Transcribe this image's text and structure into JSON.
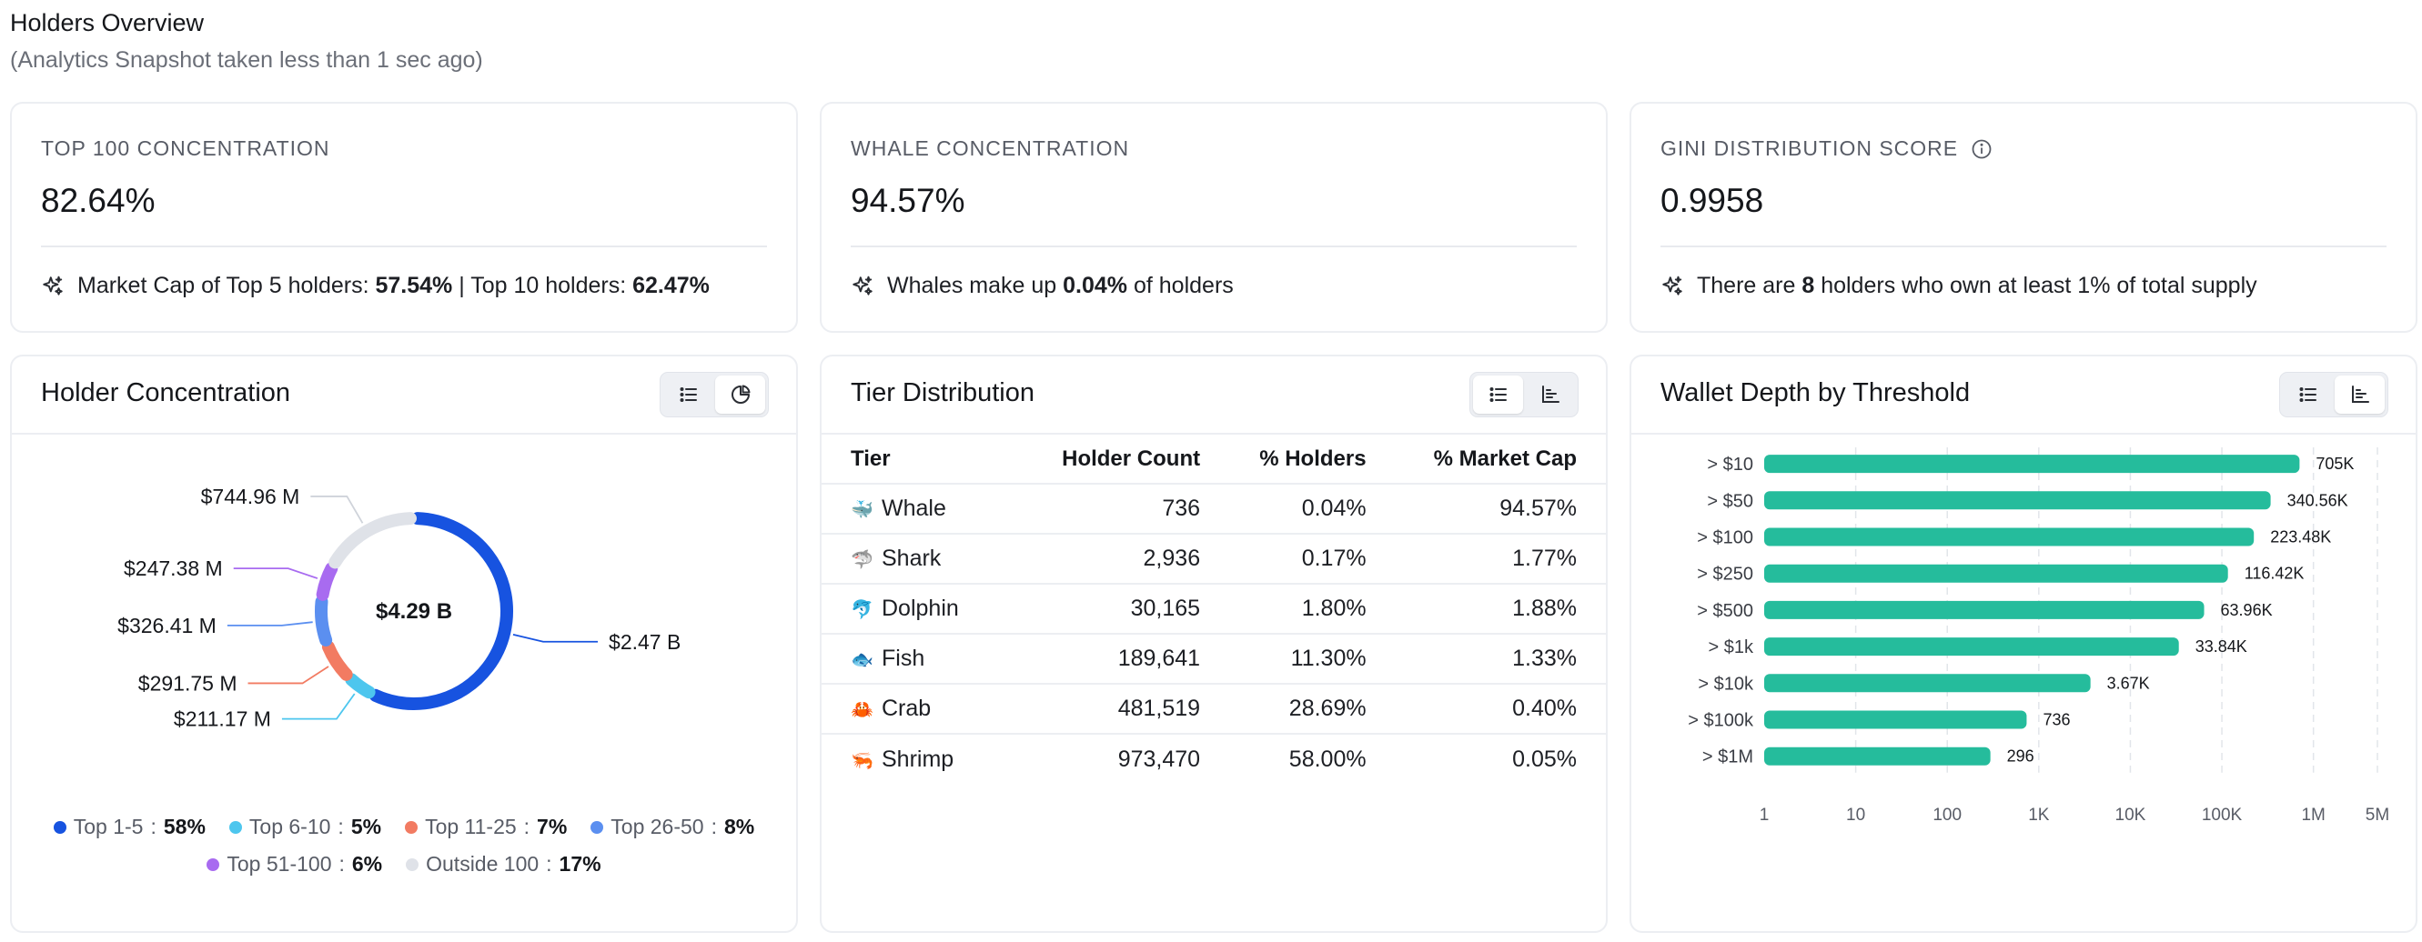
{
  "header": {
    "title": "Holders Overview",
    "subtitle": "(Analytics Snapshot taken less than 1 sec ago)"
  },
  "stats": [
    {
      "label": "TOP 100 CONCENTRATION",
      "value": "82.64%",
      "note": {
        "t1": "Market Cap of Top 5 holders: ",
        "b1": "57.54%",
        "t2": " | Top 10 holders: ",
        "b2": "62.47%",
        "t3": ""
      }
    },
    {
      "label": "WHALE CONCENTRATION",
      "value": "94.57%",
      "note": {
        "t1": "Whales make up ",
        "b1": "0.04%",
        "t2": " of holders",
        "b2": "",
        "t3": ""
      }
    },
    {
      "label": "GINI DISTRIBUTION SCORE",
      "value": "0.9958",
      "note": {
        "t1": "There are ",
        "b1": "8",
        "t2": " holders who own at least 1% of total supply",
        "b2": "",
        "t3": ""
      }
    }
  ],
  "holder_concentration": {
    "title": "Holder Concentration",
    "center_label": "$4.29 B",
    "segments": [
      {
        "key": "Top 1-5",
        "pct": 58,
        "pct_label": "58%",
        "amount": "$2.47 B",
        "color": "#1753e0"
      },
      {
        "key": "Top 6-10",
        "pct": 5,
        "pct_label": "5%",
        "amount": "$211.17 M",
        "color": "#4dc6ee"
      },
      {
        "key": "Top 11-25",
        "pct": 7,
        "pct_label": "7%",
        "amount": "$291.75 M",
        "color": "#f27b62"
      },
      {
        "key": "Top 26-50",
        "pct": 8,
        "pct_label": "8%",
        "amount": "$326.41 M",
        "color": "#5b8ff0"
      },
      {
        "key": "Top 51-100",
        "pct": 6,
        "pct_label": "6%",
        "amount": "$247.38 M",
        "color": "#a86bf0"
      },
      {
        "key": "Outside 100",
        "pct": 17,
        "pct_label": "17%",
        "amount": "$744.96 M",
        "color": "#dfe2e8"
      }
    ]
  },
  "tier_distribution": {
    "title": "Tier Distribution",
    "columns": [
      "Tier",
      "Holder Count",
      "% Holders",
      "% Market Cap"
    ],
    "rows": [
      {
        "icon": "whale-icon",
        "emoji": "🐳",
        "tier": "Whale",
        "count": "736",
        "holders": "0.04%",
        "mcap": "94.57%"
      },
      {
        "icon": "shark-icon",
        "emoji": "🦈",
        "tier": "Shark",
        "count": "2,936",
        "holders": "0.17%",
        "mcap": "1.77%"
      },
      {
        "icon": "dolphin-icon",
        "emoji": "🐬",
        "tier": "Dolphin",
        "count": "30,165",
        "holders": "1.80%",
        "mcap": "1.88%"
      },
      {
        "icon": "fish-icon",
        "emoji": "🐟",
        "tier": "Fish",
        "count": "189,641",
        "holders": "11.30%",
        "mcap": "1.33%"
      },
      {
        "icon": "crab-icon",
        "emoji": "🦀",
        "tier": "Crab",
        "count": "481,519",
        "holders": "28.69%",
        "mcap": "0.40%"
      },
      {
        "icon": "shrimp-icon",
        "emoji": "🦐",
        "tier": "Shrimp",
        "count": "973,470",
        "holders": "58.00%",
        "mcap": "0.05%"
      }
    ]
  },
  "wallet_depth": {
    "title": "Wallet Depth by Threshold"
  },
  "chart_data": {
    "type": "bar",
    "orientation": "horizontal",
    "x_scale": "log",
    "xlim": [
      1,
      5000000
    ],
    "categories": [
      "> $10",
      "> $50",
      "> $100",
      "> $250",
      "> $500",
      "> $1k",
      "> $10k",
      "> $100k",
      "> $1M"
    ],
    "values": [
      705000,
      340560,
      223480,
      116420,
      63960,
      33840,
      3670,
      736,
      296
    ],
    "value_labels": [
      "705K",
      "340.56K",
      "223.48K",
      "116.42K",
      "63.96K",
      "33.84K",
      "3.67K",
      "736",
      "296"
    ],
    "x_ticks": [
      1,
      10,
      100,
      1000,
      10000,
      100000,
      1000000,
      5000000
    ],
    "x_tick_labels": [
      "1",
      "10",
      "100",
      "1K",
      "10K",
      "100K",
      "1M",
      "5M"
    ],
    "grid": "vertical dashed",
    "bar_color": "#25bc9c"
  },
  "colors": {
    "accent": "#1753e0",
    "bar": "#25bc9c",
    "border": "#eceef2"
  }
}
